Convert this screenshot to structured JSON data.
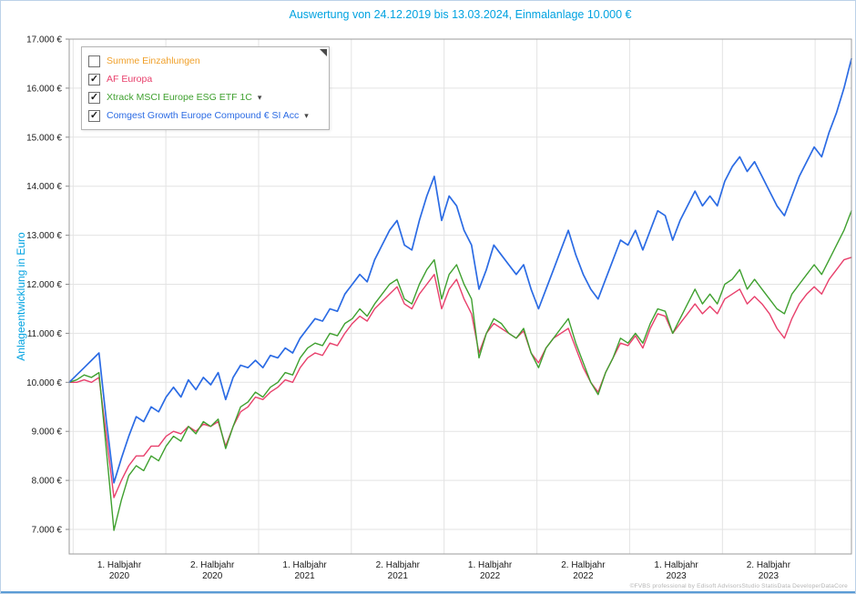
{
  "header": {
    "title": "Auswertung von 24.12.2019 bis 13.03.2024, Einmalanlage 10.000 €",
    "title_color": "#00a2e0"
  },
  "legend": {
    "position": "top-left",
    "items": [
      {
        "label": "Summe Einzahlungen",
        "color": "#f0a02a",
        "checked": false,
        "dropdown": false
      },
      {
        "label": "AF Europa",
        "color": "#e8406c",
        "checked": true,
        "dropdown": false
      },
      {
        "label": "Xtrack MSCI Europe ESG ETF 1C",
        "color": "#3fa02f",
        "checked": true,
        "dropdown": true
      },
      {
        "label": "Comgest Growth Europe Compound € SI Acc",
        "color": "#2b6be4",
        "checked": true,
        "dropdown": true
      }
    ]
  },
  "chart_data": {
    "type": "line",
    "title": "Auswertung von 24.12.2019 bis 13.03.2024, Einmalanlage 10.000 €",
    "ylabel": "Anlageentwicklung  in Euro",
    "xlabel": "",
    "grid": true,
    "legend_position": "top-left",
    "ylim": [
      6500,
      17000
    ],
    "x_range": {
      "start": "24.12.2019",
      "end": "13.03.2024"
    },
    "y_ticks": [
      {
        "value": 17000,
        "label": "17.000 €"
      },
      {
        "value": 16000,
        "label": "16.000 €"
      },
      {
        "value": 15000,
        "label": "15.000 €"
      },
      {
        "value": 14000,
        "label": "14.000 €"
      },
      {
        "value": 13000,
        "label": "13.000 €"
      },
      {
        "value": 12000,
        "label": "12.000 €"
      },
      {
        "value": 11000,
        "label": "11.000 €"
      },
      {
        "value": 10000,
        "label": "10.000 €"
      },
      {
        "value": 9000,
        "label": "9.000 €"
      },
      {
        "value": 8000,
        "label": "8.000 €"
      },
      {
        "value": 7000,
        "label": "7.000 €"
      }
    ],
    "x_gridlines": [
      0.005,
      0.1235,
      0.2421,
      0.3607,
      0.4793,
      0.5979,
      0.7164,
      0.835,
      0.9536
    ],
    "x_ticks": [
      {
        "pos": 0.064,
        "line1": "1. Halbjahr",
        "line2": "2020"
      },
      {
        "pos": 0.183,
        "line1": "2. Halbjahr",
        "line2": "2020"
      },
      {
        "pos": 0.301,
        "line1": "1. Halbjahr",
        "line2": "2021"
      },
      {
        "pos": 0.42,
        "line1": "2. Halbjahr",
        "line2": "2021"
      },
      {
        "pos": 0.538,
        "line1": "1. Halbjahr",
        "line2": "2022"
      },
      {
        "pos": 0.657,
        "line1": "2. Halbjahr",
        "line2": "2022"
      },
      {
        "pos": 0.776,
        "line1": "1. Halbjahr",
        "line2": "2023"
      },
      {
        "pos": 0.894,
        "line1": "2. Halbjahr",
        "line2": "2023"
      }
    ],
    "series": [
      {
        "name": "AF Europa",
        "color": "#e8406c",
        "width": 1.4,
        "values": [
          10000,
          10000,
          10050,
          10000,
          10100,
          8900,
          7650,
          8000,
          8300,
          8500,
          8500,
          8700,
          8700,
          8900,
          9000,
          8950,
          9100,
          9000,
          9150,
          9100,
          9200,
          8700,
          9100,
          9400,
          9500,
          9700,
          9650,
          9800,
          9900,
          10050,
          10000,
          10300,
          10500,
          10600,
          10550,
          10800,
          10750,
          11000,
          11200,
          11350,
          11250,
          11500,
          11650,
          11800,
          11950,
          11600,
          11500,
          11800,
          12000,
          12200,
          11500,
          11900,
          12100,
          11700,
          11400,
          10600,
          11000,
          11200,
          11100,
          11000,
          10900,
          11050,
          10600,
          10400,
          10700,
          10900,
          11000,
          11100,
          10700,
          10300,
          10000,
          9800,
          10200,
          10500,
          10800,
          10750,
          10950,
          10700,
          11100,
          11400,
          11350,
          11000,
          11200,
          11400,
          11600,
          11400,
          11550,
          11400,
          11700,
          11800,
          11900,
          11600,
          11750,
          11600,
          11400,
          11100,
          10900,
          11300,
          11600,
          11800,
          11950,
          11800,
          12100,
          12300,
          12500,
          12550
        ]
      },
      {
        "name": "Xtrack MSCI Europe ESG ETF 1C",
        "color": "#3fa02f",
        "width": 1.4,
        "values": [
          10000,
          10050,
          10150,
          10100,
          10200,
          8600,
          6980,
          7600,
          8100,
          8300,
          8200,
          8500,
          8400,
          8700,
          8900,
          8800,
          9100,
          8950,
          9200,
          9100,
          9250,
          8650,
          9100,
          9500,
          9600,
          9800,
          9700,
          9900,
          10000,
          10200,
          10150,
          10500,
          10700,
          10800,
          10750,
          11000,
          10950,
          11200,
          11300,
          11500,
          11350,
          11600,
          11800,
          12000,
          12100,
          11700,
          11600,
          12000,
          12300,
          12500,
          11700,
          12200,
          12400,
          12000,
          11700,
          10500,
          11000,
          11300,
          11200,
          11000,
          10900,
          11100,
          10600,
          10300,
          10700,
          10900,
          11100,
          11300,
          10800,
          10400,
          10000,
          9750,
          10200,
          10500,
          10900,
          10800,
          11000,
          10800,
          11200,
          11500,
          11450,
          11000,
          11300,
          11600,
          11900,
          11600,
          11800,
          11600,
          12000,
          12100,
          12300,
          11900,
          12100,
          11900,
          11700,
          11500,
          11400,
          11800,
          12000,
          12200,
          12400,
          12200,
          12500,
          12800,
          13100,
          13500
        ]
      },
      {
        "name": "Comgest Growth Europe Compound € SI Acc",
        "color": "#2b6be4",
        "width": 1.7,
        "values": [
          10000,
          10150,
          10300,
          10450,
          10600,
          9200,
          7950,
          8450,
          8900,
          9300,
          9200,
          9500,
          9400,
          9700,
          9900,
          9700,
          10050,
          9850,
          10100,
          9950,
          10200,
          9650,
          10100,
          10350,
          10300,
          10450,
          10300,
          10550,
          10500,
          10700,
          10600,
          10900,
          11100,
          11300,
          11250,
          11500,
          11450,
          11800,
          12000,
          12200,
          12050,
          12500,
          12800,
          13100,
          13300,
          12800,
          12700,
          13300,
          13800,
          14200,
          13300,
          13800,
          13600,
          13100,
          12800,
          11900,
          12300,
          12800,
          12600,
          12400,
          12200,
          12400,
          11900,
          11500,
          11900,
          12300,
          12700,
          13100,
          12600,
          12200,
          11900,
          11700,
          12100,
          12500,
          12900,
          12800,
          13100,
          12700,
          13100,
          13500,
          13400,
          12900,
          13300,
          13600,
          13900,
          13600,
          13800,
          13600,
          14100,
          14400,
          14600,
          14300,
          14500,
          14200,
          13900,
          13600,
          13400,
          13800,
          14200,
          14500,
          14800,
          14600,
          15100,
          15500,
          16000,
          16600
        ]
      }
    ]
  },
  "footer": {
    "watermark": "©FVBS professional by Edisoft  AdvisorsStudio StatisData DeveloperDataCore"
  }
}
